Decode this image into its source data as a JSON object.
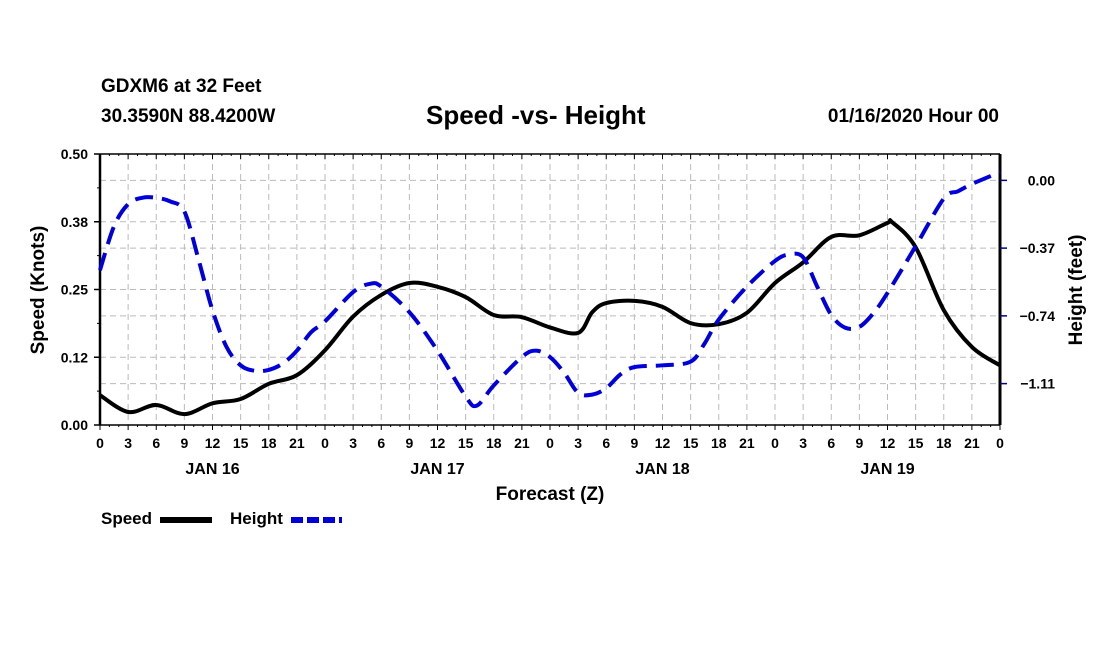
{
  "header": {
    "station": "GDXM6 at 32 Feet",
    "coords": "30.3590N 88.4200W",
    "title": "Speed -vs- Height",
    "run": "01/16/2020 Hour 00"
  },
  "legend": {
    "speed_label": "Speed",
    "height_label": "Height"
  },
  "chart_data": {
    "type": "line",
    "title": "Speed -vs- Height",
    "xlabel": "Forecast (Z)",
    "ylabel": "Speed (Knots)",
    "y2label": "Height (feet)",
    "xlim": [
      0,
      96
    ],
    "ylim": [
      0,
      0.5
    ],
    "y2lim": [
      -1.336,
      0.144
    ],
    "yticks": [
      "0.00",
      "0.12",
      "0.25",
      "0.38",
      "0.50"
    ],
    "ytick_values": [
      0,
      0.125,
      0.25,
      0.375,
      0.5
    ],
    "y2ticks": [
      "0.00",
      "-0.37",
      "-0.74",
      "-1.11"
    ],
    "y2tick_values": [
      0,
      -0.37,
      -0.74,
      -1.11
    ],
    "xtick_labels": [
      "0",
      "3",
      "6",
      "9",
      "12",
      "15",
      "18",
      "21",
      "0",
      "3",
      "6",
      "9",
      "12",
      "15",
      "18",
      "21",
      "0",
      "3",
      "6",
      "9",
      "12",
      "15",
      "18",
      "21",
      "0",
      "3",
      "6",
      "9",
      "12",
      "15",
      "18",
      "21",
      "0"
    ],
    "day_labels": [
      {
        "label": "JAN 16",
        "hour": 12
      },
      {
        "label": "JAN 17",
        "hour": 36
      },
      {
        "label": "JAN 18",
        "hour": 60
      },
      {
        "label": "JAN 19",
        "hour": 84
      }
    ],
    "grid": true,
    "legend_position": "bottom-left",
    "series": [
      {
        "name": "Speed",
        "axis": "left",
        "color": "#000000",
        "style": "solid",
        "x": [
          0,
          3,
          6,
          9,
          12,
          15,
          18,
          21,
          24,
          27,
          30,
          33,
          36,
          39,
          42,
          45,
          48,
          51,
          52.5,
          54,
          57,
          60,
          63,
          66,
          69,
          72,
          75,
          78,
          81,
          84,
          84.5,
          87,
          90,
          93,
          96
        ],
        "values": [
          0.055,
          0.024,
          0.037,
          0.02,
          0.04,
          0.048,
          0.076,
          0.092,
          0.138,
          0.2,
          0.24,
          0.262,
          0.255,
          0.236,
          0.203,
          0.199,
          0.18,
          0.17,
          0.208,
          0.225,
          0.229,
          0.218,
          0.188,
          0.186,
          0.207,
          0.262,
          0.3,
          0.347,
          0.35,
          0.373,
          0.374,
          0.328,
          0.212,
          0.144,
          0.11
        ]
      },
      {
        "name": "Height",
        "axis": "right",
        "color": "#0000dd",
        "style": "dashed",
        "x": [
          0,
          1.5,
          3,
          4.5,
          6,
          7.5,
          9,
          10.5,
          12,
          13.5,
          15,
          16.5,
          18,
          19.5,
          21,
          22.5,
          24,
          27,
          28.8,
          30,
          33,
          36,
          39,
          40.2,
          42,
          45,
          46.5,
          48,
          49.5,
          51,
          52.5,
          54,
          55.5,
          57,
          60,
          63,
          64.5,
          66,
          69,
          72,
          73.5,
          75,
          76.5,
          78,
          79.5,
          81,
          82.5,
          84,
          87,
          90,
          91.5,
          93,
          96
        ],
        "values": [
          -0.49,
          -0.25,
          -0.13,
          -0.095,
          -0.095,
          -0.115,
          -0.17,
          -0.43,
          -0.71,
          -0.91,
          -1.01,
          -1.04,
          -1.035,
          -1.0,
          -0.93,
          -0.83,
          -0.77,
          -0.61,
          -0.565,
          -0.58,
          -0.72,
          -0.93,
          -1.18,
          -1.23,
          -1.12,
          -0.965,
          -0.93,
          -0.965,
          -1.05,
          -1.16,
          -1.17,
          -1.135,
          -1.06,
          -1.02,
          -1.01,
          -0.99,
          -0.89,
          -0.76,
          -0.58,
          -0.44,
          -0.405,
          -0.42,
          -0.58,
          -0.735,
          -0.805,
          -0.8,
          -0.725,
          -0.615,
          -0.36,
          -0.1,
          -0.06,
          -0.02,
          0.045
        ]
      }
    ]
  }
}
